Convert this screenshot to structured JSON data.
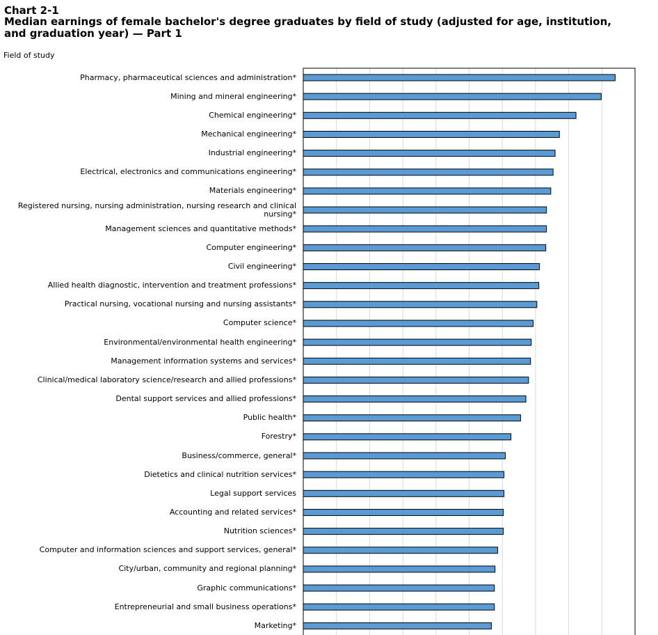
{
  "chart_number": "Chart 2-1",
  "title": "Median earnings of female bachelor's degree graduates by field of study (adjusted for age, institution,  and graduation year) — Part 1",
  "axis_title": "Field of study",
  "colors": {
    "bar_fill": "#5b9bd5",
    "bar_stroke": "#000000",
    "grid": "#d9d9d9",
    "frame": "#000000"
  },
  "chart_data": {
    "type": "bar",
    "orientation": "horizontal",
    "title": "Median earnings of female bachelor's degree graduates by field of study (adjusted for age, institution,  and graduation year) — Part 1",
    "ylabel": "Field of study",
    "xlim": [
      0,
      100
    ],
    "grid": true,
    "categories": [
      "Pharmacy, pharmaceutical sciences and administration*",
      "Mining and mineral engineering*",
      "Chemical engineering*",
      "Mechanical engineering*",
      "Industrial engineering*",
      "Electrical, electronics and communications engineering*",
      "Materials engineering*",
      "Registered nursing, nursing administration, nursing research and clinical nursing*",
      "Management sciences and quantitative methods*",
      "Computer engineering*",
      "Civil engineering*",
      "Allied health diagnostic, intervention and treatment professions*",
      "Practical nursing, vocational nursing and nursing assistants*",
      "Computer science*",
      "Environmental/environmental health engineering*",
      "Management information systems and services*",
      "Clinical/medical laboratory science/research and allied professions*",
      "Dental support services and allied professions*",
      "Public health*",
      "Forestry*",
      "Business/commerce, general*",
      "Dietetics and clinical nutrition services*",
      "Legal support services",
      "Accounting and related services*",
      "Nutrition sciences*",
      "Computer and information sciences and support services, general*",
      "City/urban, community and regional planning*",
      "Graphic communications*",
      "Entrepreneurial and small business operations*",
      "Marketing*"
    ],
    "values": [
      94.0,
      89.8,
      82.2,
      77.2,
      75.9,
      75.3,
      74.6,
      73.3,
      73.3,
      73.1,
      71.2,
      71.0,
      70.4,
      69.3,
      68.7,
      68.5,
      67.9,
      67.1,
      65.5,
      62.6,
      60.9,
      60.5,
      60.5,
      60.3,
      60.3,
      58.6,
      57.8,
      57.6,
      57.6,
      56.7
    ]
  }
}
